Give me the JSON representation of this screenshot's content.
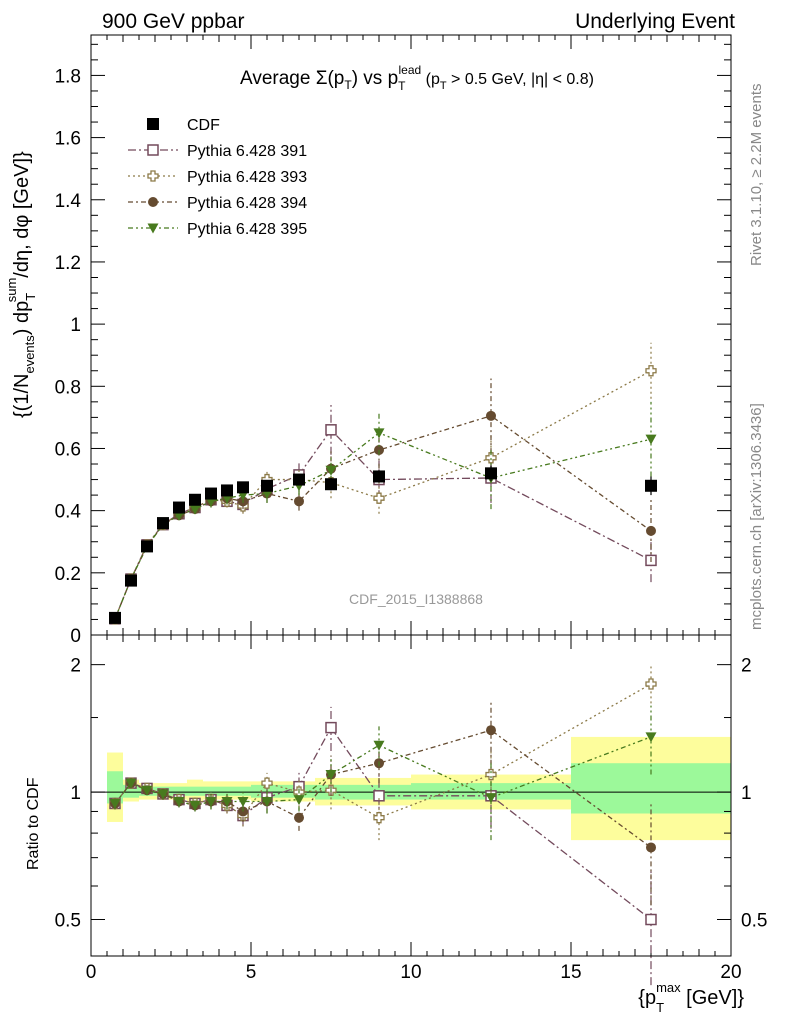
{
  "header": {
    "left": "900 GeV ppbar",
    "right": "Underlying Event",
    "side_top": "Rivet 3.1.10, ≥ 2.2M events",
    "side_bottom": "mcplots.cern.ch [arXiv:1306.3436]",
    "analysis_id": "CDF_2015_I1388868"
  },
  "titles": {
    "main": {
      "a": "Average ",
      "b": "Σ(p",
      "c": "T",
      "d": ") vs p",
      "e": "T",
      "f": "lead",
      "g": " (p",
      "h": "T",
      "i": " > 0.5 GeV, |η| < 0.8)"
    },
    "ylabel_main": {
      "a": "{(1/N",
      "b": "events",
      "c": ") dp",
      "d": "T",
      "e": "sum",
      "f": "/dη, dφ [GeV]}"
    },
    "ylabel_ratio": "Ratio to CDF",
    "xlabel": {
      "a": "{p",
      "b": "T",
      "c": "max",
      "d": " [GeV]}"
    }
  },
  "chart_data": [
    {
      "type": "scatter",
      "panel": "main",
      "xlim": [
        0,
        20
      ],
      "ylim": [
        0,
        1.93
      ],
      "x_ticks": [
        0,
        5,
        10,
        15,
        20
      ],
      "y_ticks": [
        0,
        0.2,
        0.4,
        0.6,
        0.8,
        1,
        1.2,
        1.4,
        1.6,
        1.8
      ],
      "y_tick_labels": [
        "0",
        "0.2",
        "0.4",
        "0.6",
        "0.8",
        "1",
        "1.2",
        "1.4",
        "1.6",
        "1.8"
      ],
      "legend_position": "top-left",
      "x": [
        0.75,
        1.25,
        1.75,
        2.25,
        2.75,
        3.25,
        3.75,
        4.25,
        4.75,
        5.5,
        6.5,
        7.5,
        9.0,
        12.5,
        17.5
      ],
      "data": {
        "name": "CDF",
        "color": "#000000",
        "y": [
          0.055,
          0.175,
          0.285,
          0.36,
          0.41,
          0.435,
          0.455,
          0.465,
          0.475,
          0.48,
          0.5,
          0.485,
          0.51,
          0.52,
          0.48
        ],
        "err": [
          0.005,
          0.005,
          0.008,
          0.008,
          0.008,
          0.008,
          0.008,
          0.008,
          0.01,
          0.01,
          0.015,
          0.02,
          0.02,
          0.025,
          0.03
        ]
      },
      "series": [
        {
          "name": "Pythia 6.428 391",
          "color": "#734a5c",
          "marker": "open-square",
          "dash": "8,3,2,3",
          "y": [
            0.052,
            0.18,
            0.29,
            0.355,
            0.39,
            0.41,
            0.435,
            0.43,
            0.42,
            0.47,
            0.515,
            0.66,
            0.5,
            0.505,
            0.24
          ],
          "err": [
            0.005,
            0.01,
            0.01,
            0.015,
            0.015,
            0.015,
            0.02,
            0.02,
            0.025,
            0.03,
            0.04,
            0.08,
            0.06,
            0.08,
            0.07
          ]
        },
        {
          "name": "Pythia 6.428 393",
          "color": "#8c7a48",
          "marker": "open-cross",
          "dash": "2,3",
          "y": [
            0.052,
            0.18,
            0.29,
            0.355,
            0.39,
            0.41,
            0.435,
            0.43,
            0.415,
            0.5,
            0.5,
            0.49,
            0.44,
            0.57,
            0.85
          ],
          "err": [
            0.005,
            0.01,
            0.01,
            0.015,
            0.015,
            0.015,
            0.02,
            0.02,
            0.025,
            0.03,
            0.04,
            0.05,
            0.05,
            0.08,
            0.09
          ]
        },
        {
          "name": "Pythia 6.428 394",
          "color": "#654b30",
          "marker": "filled-circle",
          "dash": "5,3,2,3",
          "y": [
            0.052,
            0.18,
            0.285,
            0.355,
            0.385,
            0.405,
            0.43,
            0.44,
            0.43,
            0.455,
            0.43,
            0.535,
            0.595,
            0.705,
            0.335
          ],
          "err": [
            0.005,
            0.01,
            0.01,
            0.015,
            0.015,
            0.015,
            0.02,
            0.02,
            0.025,
            0.03,
            0.03,
            0.06,
            0.06,
            0.12,
            0.1
          ]
        },
        {
          "name": "Pythia 6.428 395",
          "color": "#487a1e",
          "marker": "filled-triangle-down",
          "dash": "5,3,2,3,2,3",
          "y": [
            0.052,
            0.18,
            0.285,
            0.355,
            0.385,
            0.405,
            0.43,
            0.44,
            0.45,
            0.455,
            0.48,
            0.53,
            0.65,
            0.505,
            0.63
          ],
          "err": [
            0.005,
            0.01,
            0.01,
            0.015,
            0.015,
            0.015,
            0.02,
            0.02,
            0.025,
            0.03,
            0.03,
            0.05,
            0.07,
            0.1,
            0.12
          ]
        }
      ]
    },
    {
      "type": "scatter",
      "panel": "ratio",
      "xlim": [
        0,
        20
      ],
      "ylim": [
        0.41,
        2.35
      ],
      "y_scale": "log",
      "x_ticks": [
        0,
        5,
        10,
        15,
        20
      ],
      "y_ticks": [
        0.5,
        1,
        2
      ],
      "y_tick_labels": [
        "0.5",
        "1",
        "2"
      ],
      "bands": [
        {
          "x0": 0.5,
          "x1": 1.0,
          "inner": [
            0.94,
            1.12
          ],
          "outer": [
            0.85,
            1.24
          ]
        },
        {
          "x0": 1.0,
          "x1": 1.5,
          "inner": [
            0.97,
            1.04
          ],
          "outer": [
            0.95,
            1.07
          ]
        },
        {
          "x0": 1.5,
          "x1": 2.0,
          "inner": [
            0.98,
            1.03
          ],
          "outer": [
            0.96,
            1.05
          ]
        },
        {
          "x0": 2.0,
          "x1": 2.5,
          "inner": [
            0.98,
            1.03
          ],
          "outer": [
            0.96,
            1.05
          ]
        },
        {
          "x0": 2.5,
          "x1": 3.0,
          "inner": [
            0.98,
            1.03
          ],
          "outer": [
            0.96,
            1.05
          ]
        },
        {
          "x0": 3.0,
          "x1": 3.5,
          "inner": [
            0.98,
            1.03
          ],
          "outer": [
            0.95,
            1.07
          ]
        },
        {
          "x0": 3.5,
          "x1": 4.0,
          "inner": [
            0.98,
            1.03
          ],
          "outer": [
            0.96,
            1.06
          ]
        },
        {
          "x0": 4.0,
          "x1": 4.5,
          "inner": [
            0.98,
            1.03
          ],
          "outer": [
            0.96,
            1.06
          ]
        },
        {
          "x0": 4.5,
          "x1": 5.0,
          "inner": [
            0.98,
            1.03
          ],
          "outer": [
            0.96,
            1.06
          ]
        },
        {
          "x0": 5.0,
          "x1": 6.0,
          "inner": [
            0.97,
            1.04
          ],
          "outer": [
            0.95,
            1.06
          ]
        },
        {
          "x0": 6.0,
          "x1": 7.0,
          "inner": [
            0.97,
            1.04
          ],
          "outer": [
            0.95,
            1.06
          ]
        },
        {
          "x0": 7.0,
          "x1": 8.0,
          "inner": [
            0.96,
            1.04
          ],
          "outer": [
            0.93,
            1.08
          ]
        },
        {
          "x0": 8.0,
          "x1": 10.0,
          "inner": [
            0.96,
            1.04
          ],
          "outer": [
            0.93,
            1.08
          ]
        },
        {
          "x0": 10.0,
          "x1": 15.0,
          "inner": [
            0.96,
            1.05
          ],
          "outer": [
            0.91,
            1.1
          ]
        },
        {
          "x0": 15.0,
          "x1": 20.0,
          "inner": [
            0.89,
            1.17
          ],
          "outer": [
            0.77,
            1.35
          ]
        }
      ],
      "band_colors": {
        "inner": "#9cf99a",
        "outer": "#fdfd9c"
      },
      "x": [
        0.75,
        1.25,
        1.75,
        2.25,
        2.75,
        3.25,
        3.75,
        4.25,
        4.75,
        5.5,
        6.5,
        7.5,
        9.0,
        12.5,
        17.5
      ],
      "series": [
        {
          "name": "Pythia 6.428 391",
          "color": "#734a5c",
          "marker": "open-square",
          "dash": "8,3,2,3",
          "y": [
            0.94,
            1.05,
            1.02,
            0.99,
            0.96,
            0.94,
            0.96,
            0.93,
            0.88,
            0.97,
            1.03,
            1.42,
            0.98,
            0.98,
            0.5
          ],
          "err": [
            0.03,
            0.02,
            0.02,
            0.03,
            0.03,
            0.03,
            0.04,
            0.04,
            0.05,
            0.06,
            0.08,
            0.17,
            0.12,
            0.16,
            0.15
          ]
        },
        {
          "name": "Pythia 6.428 393",
          "color": "#8c7a48",
          "marker": "open-cross",
          "dash": "2,3",
          "y": [
            0.94,
            1.05,
            1.02,
            0.99,
            0.96,
            0.94,
            0.96,
            0.93,
            0.88,
            1.05,
            1.0,
            1.01,
            0.87,
            1.1,
            1.8
          ],
          "err": [
            0.03,
            0.02,
            0.02,
            0.03,
            0.03,
            0.03,
            0.04,
            0.04,
            0.05,
            0.06,
            0.08,
            0.1,
            0.1,
            0.16,
            0.18
          ]
        },
        {
          "name": "Pythia 6.428 394",
          "color": "#654b30",
          "marker": "filled-circle",
          "dash": "5,3,2,3",
          "y": [
            0.94,
            1.05,
            1.01,
            0.99,
            0.95,
            0.93,
            0.95,
            0.95,
            0.9,
            0.95,
            0.87,
            1.1,
            1.17,
            1.4,
            0.74
          ],
          "err": [
            0.03,
            0.02,
            0.02,
            0.03,
            0.03,
            0.03,
            0.04,
            0.04,
            0.05,
            0.06,
            0.06,
            0.12,
            0.12,
            0.24,
            0.2
          ]
        },
        {
          "name": "Pythia 6.428 395",
          "color": "#487a1e",
          "marker": "filled-triangle-down",
          "dash": "5,3,2,3,2,3",
          "y": [
            0.94,
            1.05,
            1.01,
            0.99,
            0.95,
            0.93,
            0.95,
            0.95,
            0.95,
            0.95,
            0.96,
            1.1,
            1.29,
            0.97,
            1.35
          ],
          "err": [
            0.03,
            0.02,
            0.02,
            0.03,
            0.03,
            0.03,
            0.04,
            0.04,
            0.05,
            0.06,
            0.06,
            0.1,
            0.14,
            0.2,
            0.25
          ]
        }
      ]
    }
  ]
}
